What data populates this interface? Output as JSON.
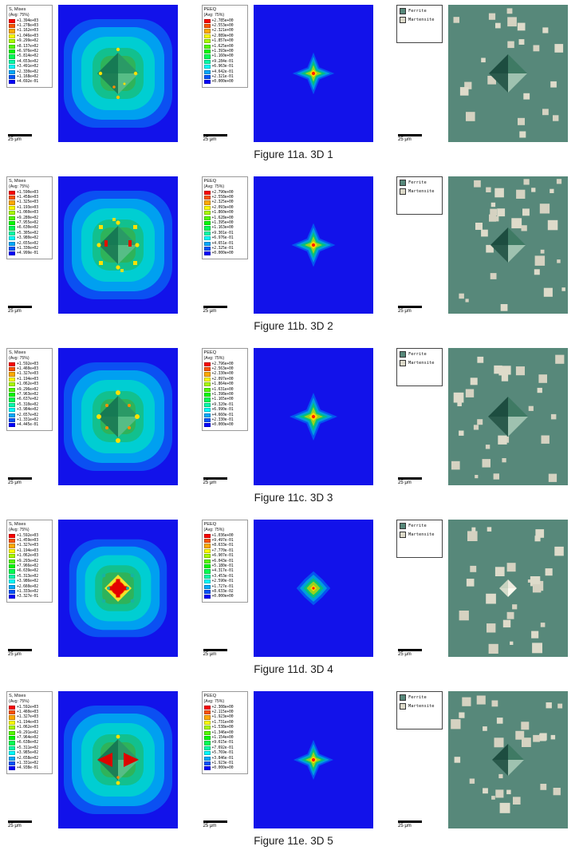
{
  "colors": {
    "ferrite": "#57887a",
    "martensite": "#dcd9c9",
    "field_blue": "#1212ea"
  },
  "figure": {
    "rows": [
      {
        "caption": "Figure 11a. 3D 1",
        "mises": {
          "legend_title": "S, Mises",
          "legend_subtitle": "(Avg: 75%)",
          "values": [
            "+1.394e+03",
            "+1.278e+03",
            "+1.162e+03",
            "+1.046e+03",
            "+9.299e+02",
            "+8.137e+02",
            "+6.976e+02",
            "+5.814e+02",
            "+4.653e+02",
            "+3.491e+02",
            "+2.330e+02",
            "+1.168e+02",
            "+4.692e-01"
          ],
          "scale_label": "25 μm"
        },
        "peeq": {
          "legend_title": "PEEQ",
          "legend_subtitle": "(Avg: 75%)",
          "values": [
            "+2.785e+00",
            "+2.553e+00",
            "+2.321e+00",
            "+2.089e+00",
            "+1.857e+00",
            "+1.625e+00",
            "+1.393e+00",
            "+1.160e+00",
            "+9.284e-01",
            "+6.963e-01",
            "+4.642e-01",
            "+2.321e-01",
            "+0.000e+00"
          ],
          "scale_label": "25 μm"
        },
        "micro": {
          "legend_items": [
            "Ferrite",
            "Martensite"
          ],
          "scale_label": "25 μm"
        }
      },
      {
        "caption": "Figure 11b. 3D 2",
        "mises": {
          "legend_title": "S, Mises",
          "legend_subtitle": "(Avg: 75%)",
          "values": [
            "+1.590e+03",
            "+1.458e+03",
            "+1.325e+03",
            "+1.193e+03",
            "+1.060e+03",
            "+9.280e+02",
            "+7.955e+02",
            "+6.630e+02",
            "+5.305e+02",
            "+3.980e+02",
            "+2.655e+02",
            "+1.330e+02",
            "+4.999e-01"
          ],
          "scale_label": "25 μm"
        },
        "peeq": {
          "legend_title": "PEEQ",
          "legend_subtitle": "(Avg: 75%)",
          "values": [
            "+2.790e+00",
            "+2.558e+00",
            "+2.325e+00",
            "+2.093e+00",
            "+1.860e+00",
            "+1.628e+00",
            "+1.395e+00",
            "+1.163e+00",
            "+9.301e-01",
            "+6.976e-01",
            "+4.651e-01",
            "+2.325e-01",
            "+0.000e+00"
          ],
          "scale_label": "25 μm"
        },
        "micro": {
          "legend_items": [
            "Ferrite",
            "Martensite"
          ],
          "scale_label": "25 μm"
        }
      },
      {
        "caption": "Figure 11c. 3D 3",
        "mises": {
          "legend_title": "S, Mises",
          "legend_subtitle": "(Avg: 75%)",
          "values": [
            "+1.592e+03",
            "+1.460e+03",
            "+1.327e+03",
            "+1.194e+03",
            "+1.062e+03",
            "+9.296e+02",
            "+7.963e+02",
            "+6.637e+02",
            "+5.310e+02",
            "+3.984e+02",
            "+2.657e+02",
            "+1.331e+02",
            "+4.445e-01"
          ],
          "scale_label": "25 μm"
        },
        "peeq": {
          "legend_title": "PEEQ",
          "legend_subtitle": "(Avg: 75%)",
          "values": [
            "+2.796e+00",
            "+2.563e+00",
            "+2.330e+00",
            "+2.097e+00",
            "+1.864e+00",
            "+1.631e+00",
            "+1.398e+00",
            "+1.165e+00",
            "+9.320e-01",
            "+6.990e-01",
            "+4.660e-01",
            "+2.330e-01",
            "+0.000e+00"
          ],
          "scale_label": "25 μm"
        },
        "micro": {
          "legend_items": [
            "Ferrite",
            "Martensite"
          ],
          "scale_label": "25 μm"
        }
      },
      {
        "caption": "Figure 11d. 3D 4",
        "mises": {
          "legend_title": "S, Mises",
          "legend_subtitle": "(Avg: 75%)",
          "values": [
            "+1.592e+03",
            "+1.459e+03",
            "+1.327e+03",
            "+1.194e+03",
            "+1.062e+03",
            "+9.293e+02",
            "+7.966e+02",
            "+6.639e+02",
            "+5.313e+02",
            "+3.986e+02",
            "+2.660e+02",
            "+1.333e+02",
            "+3.327e-01"
          ],
          "scale_label": "25 μm"
        },
        "peeq": {
          "legend_title": "PEEQ",
          "legend_subtitle": "(Avg: 75%)",
          "values": [
            "+1.036e+00",
            "+9.497e-01",
            "+8.633e-01",
            "+7.770e-01",
            "+6.907e-01",
            "+6.043e-01",
            "+5.180e-01",
            "+4.317e-01",
            "+3.453e-01",
            "+2.590e-01",
            "+1.727e-01",
            "+8.633e-02",
            "+0.000e+00"
          ],
          "scale_label": "25 μm"
        },
        "micro": {
          "legend_items": [
            "Ferrite",
            "Martensite"
          ],
          "scale_label": "25 μm"
        }
      },
      {
        "caption": "Figure 11e. 3D 5",
        "mises": {
          "legend_title": "S, Mises",
          "legend_subtitle": "(Avg: 75%)",
          "values": [
            "+1.592e+03",
            "+1.460e+03",
            "+1.327e+03",
            "+1.194e+03",
            "+1.062e+03",
            "+9.291e+02",
            "+7.964e+02",
            "+6.638e+02",
            "+5.311e+02",
            "+3.985e+02",
            "+2.658e+02",
            "+1.331e+02",
            "+4.938e-01"
          ],
          "scale_label": "25 μm"
        },
        "peeq": {
          "legend_title": "PEEQ",
          "legend_subtitle": "(Avg: 75%)",
          "values": [
            "+2.308e+00",
            "+2.115e+00",
            "+1.923e+00",
            "+1.731e+00",
            "+1.538e+00",
            "+1.346e+00",
            "+1.154e+00",
            "+9.615e-01",
            "+7.692e-01",
            "+5.769e-01",
            "+3.846e-01",
            "+1.923e-01",
            "+0.000e+00"
          ],
          "scale_label": "25 μm"
        },
        "micro": {
          "legend_items": [
            "Ferrite",
            "Martensite"
          ],
          "scale_label": "25 μm"
        }
      }
    ]
  }
}
